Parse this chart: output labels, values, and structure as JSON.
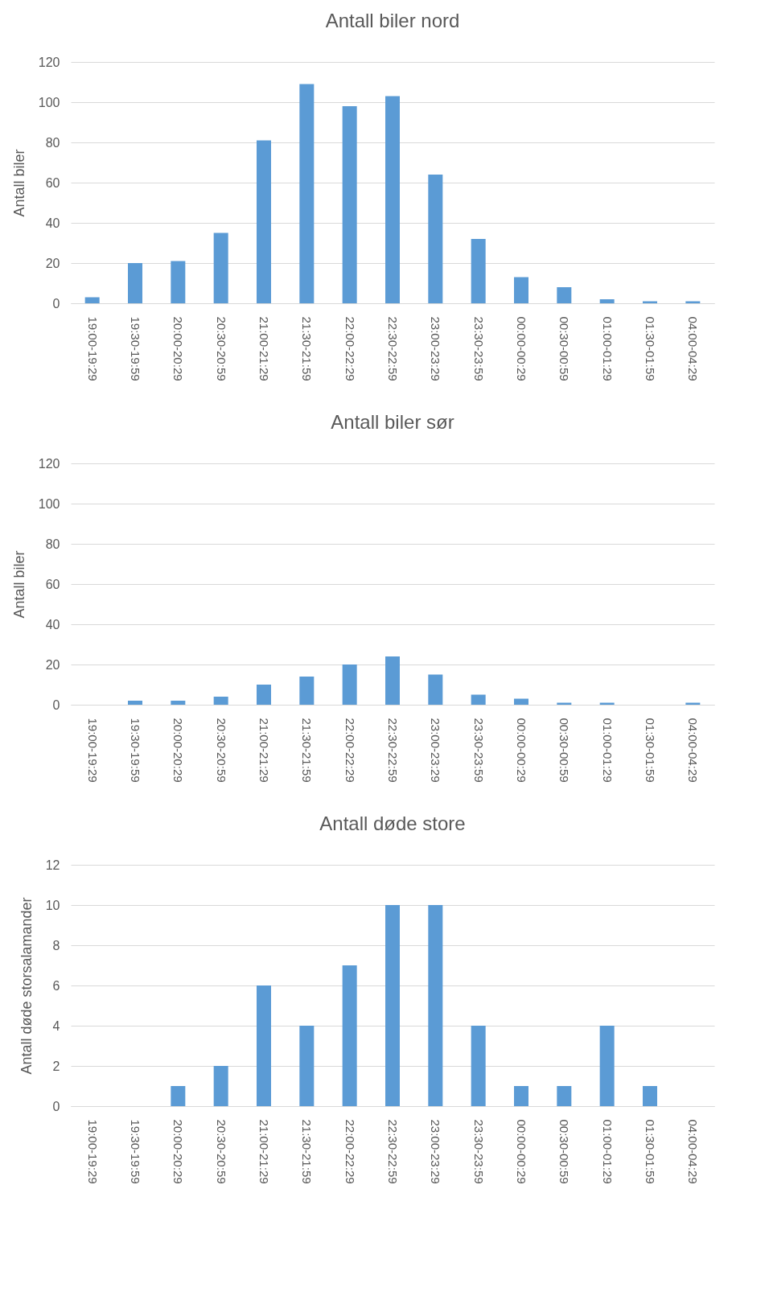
{
  "chart_data": [
    {
      "type": "bar",
      "title": "Antall biler nord",
      "ylabel": "Antall biler",
      "categories": [
        "19:00-19:29",
        "19:30-19:59",
        "20:00-20:29",
        "20:30-20:59",
        "21:00-21:29",
        "21:30-21:59",
        "22:00-22:29",
        "22:30-22:59",
        "23:00-23:29",
        "23:30-23:59",
        "00:00-00:29",
        "00:30-00:59",
        "01:00-01:29",
        "01:30-01:59",
        "04:00-04:29"
      ],
      "values": [
        3,
        20,
        21,
        35,
        81,
        109,
        98,
        103,
        64,
        32,
        13,
        8,
        2,
        1,
        1
      ],
      "color": "#5b9bd5",
      "ylim": [
        0,
        120
      ],
      "yticks": [
        0,
        20,
        40,
        60,
        80,
        100,
        120
      ],
      "grid": "y"
    },
    {
      "type": "bar",
      "title": "Antall biler sør",
      "ylabel": "Antall biler",
      "categories": [
        "19:00-19:29",
        "19:30-19:59",
        "20:00-20:29",
        "20:30-20:59",
        "21:00-21:29",
        "21:30-21:59",
        "22:00-22:29",
        "22:30-22:59",
        "23:00-23:29",
        "23:30-23:59",
        "00:00-00:29",
        "00:30-00:59",
        "01:00-01:29",
        "01:30-01:59",
        "04:00-04:29"
      ],
      "values": [
        0,
        2,
        2,
        4,
        10,
        14,
        20,
        24,
        15,
        5,
        3,
        1,
        1,
        0,
        1
      ],
      "color": "#5b9bd5",
      "ylim": [
        0,
        120
      ],
      "yticks": [
        0,
        20,
        40,
        60,
        80,
        100,
        120
      ],
      "grid": "y"
    },
    {
      "type": "bar",
      "title": "Antall døde store",
      "ylabel": "Antall døde storsalamander",
      "categories": [
        "19:00-19:29",
        "19:30-19:59",
        "20:00-20:29",
        "20:30-20:59",
        "21:00-21:29",
        "21:30-21:59",
        "22:00-22:29",
        "22:30-22:59",
        "23:00-23:29",
        "23:30-23:59",
        "00:00-00:29",
        "00:30-00:59",
        "01:00-01:29",
        "01:30-01:59",
        "04:00-04:29"
      ],
      "values": [
        0,
        0,
        1,
        2,
        6,
        4,
        7,
        10,
        10,
        4,
        1,
        1,
        4,
        1,
        0
      ],
      "color": "#5b9bd5",
      "ylim": [
        0,
        12
      ],
      "yticks": [
        0,
        2,
        4,
        6,
        8,
        10,
        12
      ],
      "grid": "y"
    }
  ]
}
